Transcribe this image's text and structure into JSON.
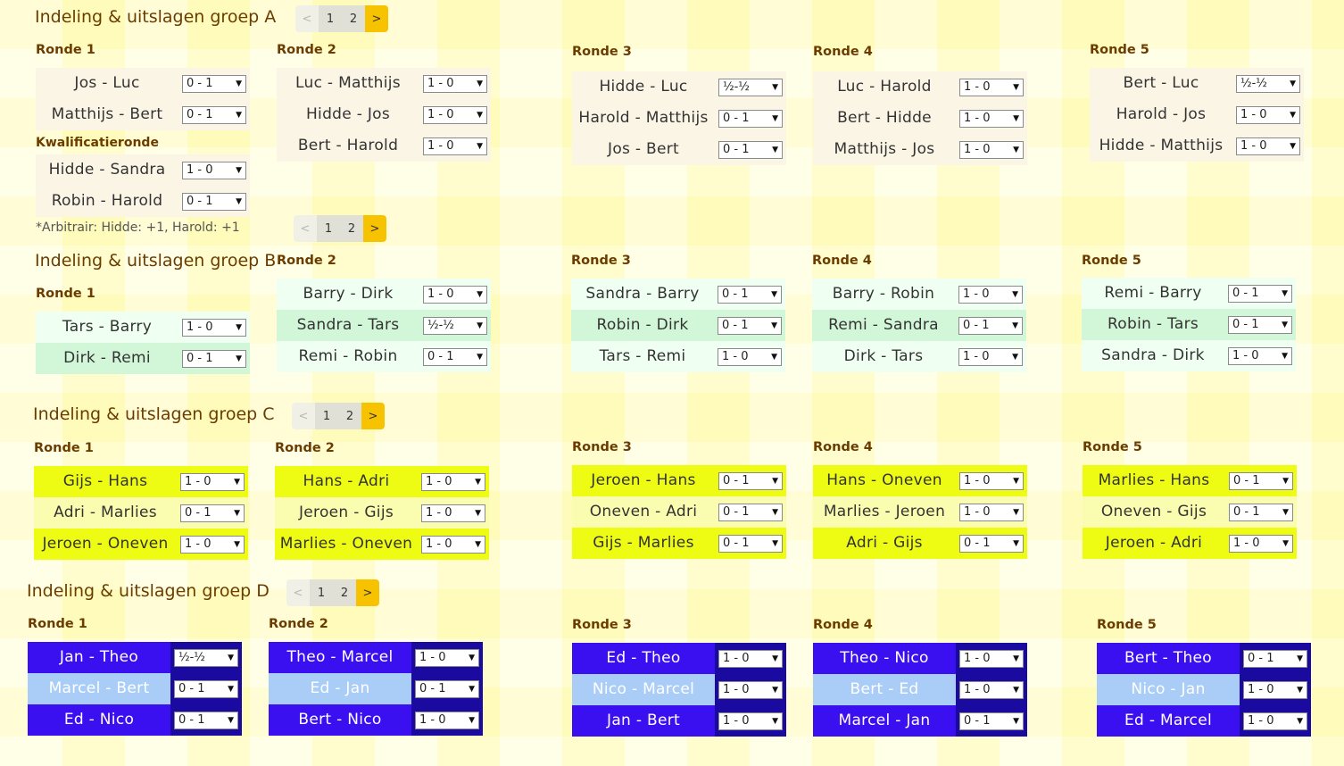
{
  "pager": {
    "prev": "<",
    "next": ">",
    "pages": [
      "1",
      "2"
    ]
  },
  "groups": [
    {
      "title": "Indeling & uitslagen groep A",
      "colors": {
        "row_a": "#fbf5e6",
        "row_b": "#fbf5e6",
        "text": "#333333"
      },
      "note": "*Arbitrair: Hidde: +1, Harold: +1",
      "qualification_label": "Kwalificatieronde",
      "qualification": [
        {
          "pair": "Hidde - Sandra",
          "result": "1 - 0"
        },
        {
          "pair": "Robin - Harold",
          "result": "0 - 1"
        }
      ],
      "rounds": [
        {
          "label": "Ronde 1",
          "matches": [
            {
              "pair": "Jos - Luc",
              "result": "0 - 1"
            },
            {
              "pair": "Matthijs - Bert",
              "result": "0 - 1"
            }
          ]
        },
        {
          "label": "Ronde 2",
          "matches": [
            {
              "pair": "Luc - Matthijs",
              "result": "1 - 0"
            },
            {
              "pair": "Hidde - Jos",
              "result": "1 - 0"
            },
            {
              "pair": "Bert - Harold",
              "result": "1 - 0"
            }
          ]
        },
        {
          "label": "Ronde 3",
          "matches": [
            {
              "pair": "Hidde - Luc",
              "result": "½-½"
            },
            {
              "pair": "Harold - Matthijs",
              "result": "0 - 1"
            },
            {
              "pair": "Jos - Bert",
              "result": "0 - 1"
            }
          ]
        },
        {
          "label": "Ronde 4",
          "matches": [
            {
              "pair": "Luc - Harold",
              "result": "1 - 0"
            },
            {
              "pair": "Bert - Hidde",
              "result": "1 - 0"
            },
            {
              "pair": "Matthijs - Jos",
              "result": "1 - 0"
            }
          ]
        },
        {
          "label": "Ronde 5",
          "matches": [
            {
              "pair": "Bert - Luc",
              "result": "½-½"
            },
            {
              "pair": "Harold - Jos",
              "result": "1 - 0"
            },
            {
              "pair": "Hidde - Matthijs",
              "result": "1 - 0"
            }
          ]
        }
      ]
    },
    {
      "title": "Indeling & uitslagen groep B",
      "colors": {
        "row_a": "#effff2",
        "row_b": "#d2f7d8",
        "text": "#333333"
      },
      "rounds": [
        {
          "label": "Ronde 1",
          "matches": [
            {
              "pair": "Tars - Barry",
              "result": "1 - 0"
            },
            {
              "pair": "Dirk - Remi",
              "result": "0 - 1"
            }
          ]
        },
        {
          "label": "Ronde 2",
          "matches": [
            {
              "pair": "Barry - Dirk",
              "result": "1 - 0"
            },
            {
              "pair": "Sandra - Tars",
              "result": "½-½"
            },
            {
              "pair": "Remi - Robin",
              "result": "0 - 1"
            }
          ]
        },
        {
          "label": "Ronde 3",
          "matches": [
            {
              "pair": "Sandra - Barry",
              "result": "0 - 1"
            },
            {
              "pair": "Robin - Dirk",
              "result": "0 - 1"
            },
            {
              "pair": "Tars - Remi",
              "result": "1 - 0"
            }
          ]
        },
        {
          "label": "Ronde 4",
          "matches": [
            {
              "pair": "Barry - Robin",
              "result": "1 - 0"
            },
            {
              "pair": "Remi - Sandra",
              "result": "0 - 1"
            },
            {
              "pair": "Dirk - Tars",
              "result": "1 - 0"
            }
          ]
        },
        {
          "label": "Ronde 5",
          "matches": [
            {
              "pair": "Remi - Barry",
              "result": "0 - 1"
            },
            {
              "pair": "Robin - Tars",
              "result": "0 - 1"
            },
            {
              "pair": "Sandra - Dirk",
              "result": "1 - 0"
            }
          ]
        }
      ]
    },
    {
      "title": "Indeling & uitslagen groep C",
      "colors": {
        "row_a": "#eefc14",
        "row_b": "#fafcb0",
        "text": "#333333"
      },
      "rounds": [
        {
          "label": "Ronde 1",
          "matches": [
            {
              "pair": "Gijs - Hans",
              "result": "1 - 0"
            },
            {
              "pair": "Adri - Marlies",
              "result": "0 - 1"
            },
            {
              "pair": "Jeroen - Oneven",
              "result": "1 - 0"
            }
          ]
        },
        {
          "label": "Ronde 2",
          "matches": [
            {
              "pair": "Hans - Adri",
              "result": "1 - 0"
            },
            {
              "pair": "Jeroen - Gijs",
              "result": "1 - 0"
            },
            {
              "pair": "Marlies - Oneven",
              "result": "1 - 0"
            }
          ]
        },
        {
          "label": "Ronde 3",
          "matches": [
            {
              "pair": "Jeroen - Hans",
              "result": "0 - 1"
            },
            {
              "pair": "Oneven - Adri",
              "result": "0 - 1"
            },
            {
              "pair": "Gijs - Marlies",
              "result": "0 - 1"
            }
          ]
        },
        {
          "label": "Ronde 4",
          "matches": [
            {
              "pair": "Hans - Oneven",
              "result": "1 - 0"
            },
            {
              "pair": "Marlies - Jeroen",
              "result": "1 - 0"
            },
            {
              "pair": "Adri - Gijs",
              "result": "0 - 1"
            }
          ]
        },
        {
          "label": "Ronde 5",
          "matches": [
            {
              "pair": "Marlies - Hans",
              "result": "0 - 1"
            },
            {
              "pair": "Oneven - Gijs",
              "result": "0 - 1"
            },
            {
              "pair": "Jeroen - Adri",
              "result": "1 - 0"
            }
          ]
        }
      ]
    },
    {
      "title": "Indeling & uitslagen groep D",
      "colors": {
        "row_a": "#3a10f0",
        "row_b": "#aacdf8",
        "text": "#ffffff",
        "cell_bg": "#1a0aa0"
      },
      "rounds": [
        {
          "label": "Ronde 1",
          "matches": [
            {
              "pair": "Jan - Theo",
              "result": "½-½"
            },
            {
              "pair": "Marcel - Bert",
              "result": "0 - 1"
            },
            {
              "pair": "Ed - Nico",
              "result": "0 - 1"
            }
          ]
        },
        {
          "label": "Ronde 2",
          "matches": [
            {
              "pair": "Theo - Marcel",
              "result": "1 - 0"
            },
            {
              "pair": "Ed - Jan",
              "result": "0 - 1"
            },
            {
              "pair": "Bert - Nico",
              "result": "1 - 0"
            }
          ]
        },
        {
          "label": "Ronde 3",
          "matches": [
            {
              "pair": "Ed - Theo",
              "result": "1 - 0"
            },
            {
              "pair": "Nico - Marcel",
              "result": "1 - 0"
            },
            {
              "pair": "Jan - Bert",
              "result": "1 - 0"
            }
          ]
        },
        {
          "label": "Ronde 4",
          "matches": [
            {
              "pair": "Theo - Nico",
              "result": "1 - 0"
            },
            {
              "pair": "Bert - Ed",
              "result": "1 - 0"
            },
            {
              "pair": "Marcel - Jan",
              "result": "0 - 1"
            }
          ]
        },
        {
          "label": "Ronde 5",
          "matches": [
            {
              "pair": "Bert - Theo",
              "result": "0 - 1"
            },
            {
              "pair": "Nico - Jan",
              "result": "1 - 0"
            },
            {
              "pair": "Ed - Marcel",
              "result": "1 - 0"
            }
          ]
        }
      ]
    }
  ]
}
